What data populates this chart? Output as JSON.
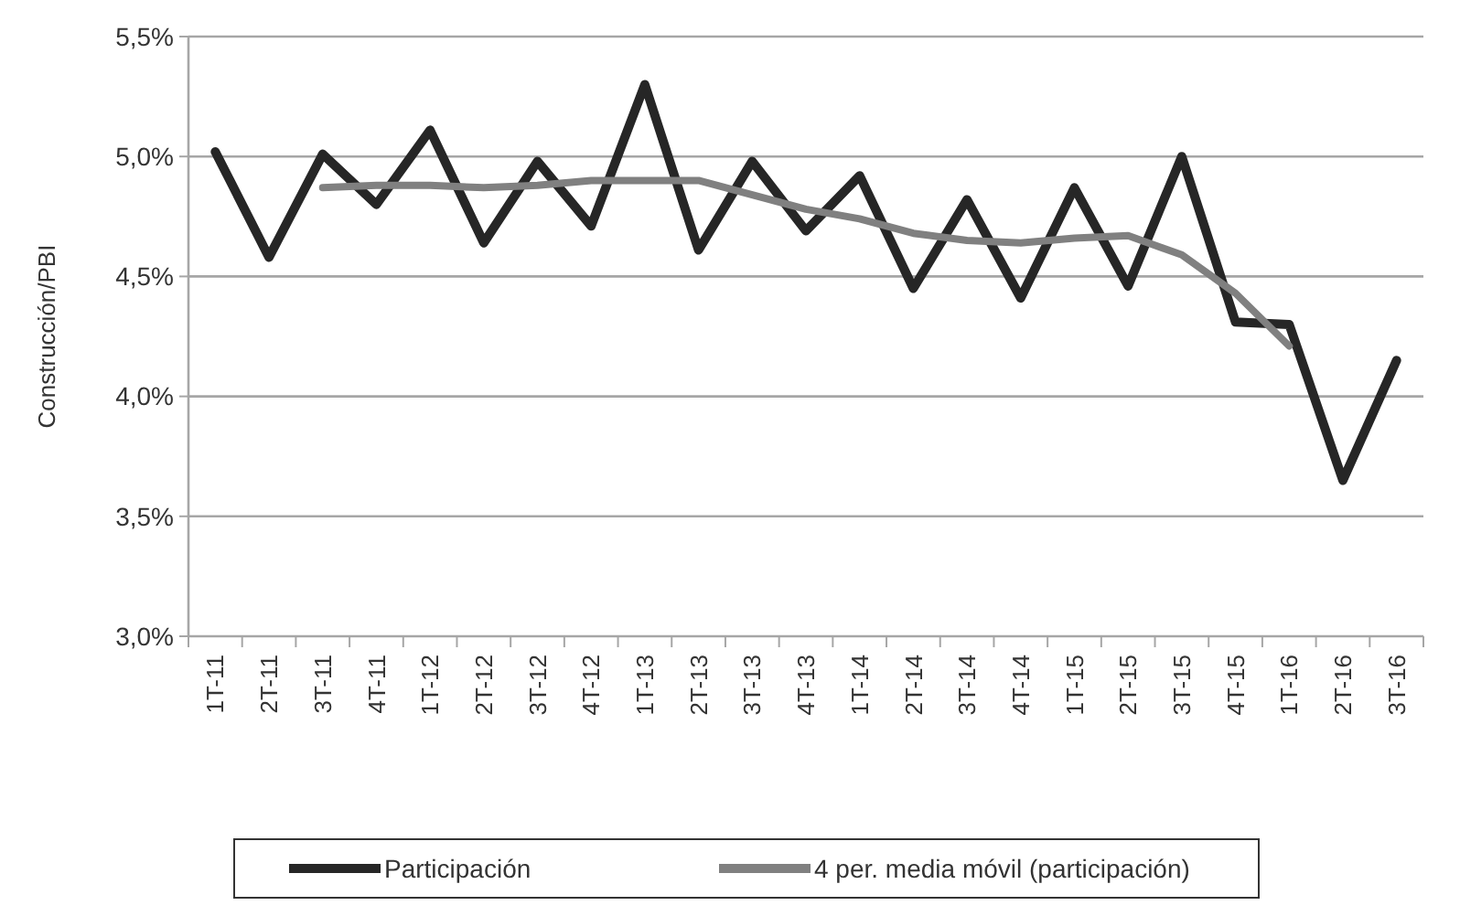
{
  "chart_data": {
    "type": "line",
    "ylabel": "Construcción/PBI",
    "categories": [
      "1T-11",
      "2T-11",
      "3T-11",
      "4T-11",
      "1T-12",
      "2T-12",
      "3T-12",
      "4T-12",
      "1T-13",
      "2T-13",
      "3T-13",
      "4T-13",
      "1T-14",
      "2T-14",
      "3T-14",
      "4T-14",
      "1T-15",
      "2T-15",
      "3T-15",
      "4T-15",
      "1T-16",
      "2T-16",
      "3T-16"
    ],
    "series": [
      {
        "name": "Participación",
        "color": "#262626",
        "values": [
          5.02,
          4.58,
          5.01,
          4.8,
          5.11,
          4.64,
          4.98,
          4.71,
          5.3,
          4.61,
          4.98,
          4.69,
          4.92,
          4.45,
          4.82,
          4.41,
          4.87,
          4.46,
          5.0,
          4.31,
          4.3,
          3.65,
          4.15
        ]
      },
      {
        "name": "4 per. media móvil (participación)",
        "color": "#808080",
        "values": [
          null,
          null,
          4.87,
          4.88,
          4.88,
          4.87,
          4.88,
          4.9,
          4.9,
          4.9,
          4.84,
          4.78,
          4.74,
          4.68,
          4.65,
          4.64,
          4.66,
          4.67,
          4.59,
          4.43,
          4.21,
          null,
          null
        ]
      }
    ],
    "ylim": [
      3.0,
      5.5
    ],
    "yticks": [
      {
        "value": 3.0,
        "label": "3,0%"
      },
      {
        "value": 3.5,
        "label": "3,5%"
      },
      {
        "value": 4.0,
        "label": "4,0%"
      },
      {
        "value": 4.5,
        "label": "4,5%"
      },
      {
        "value": 5.0,
        "label": "5,0%"
      },
      {
        "value": 5.5,
        "label": "5,5%"
      }
    ],
    "grid": "y",
    "legend": "bottom",
    "marker": "none",
    "line_style": "solid"
  }
}
